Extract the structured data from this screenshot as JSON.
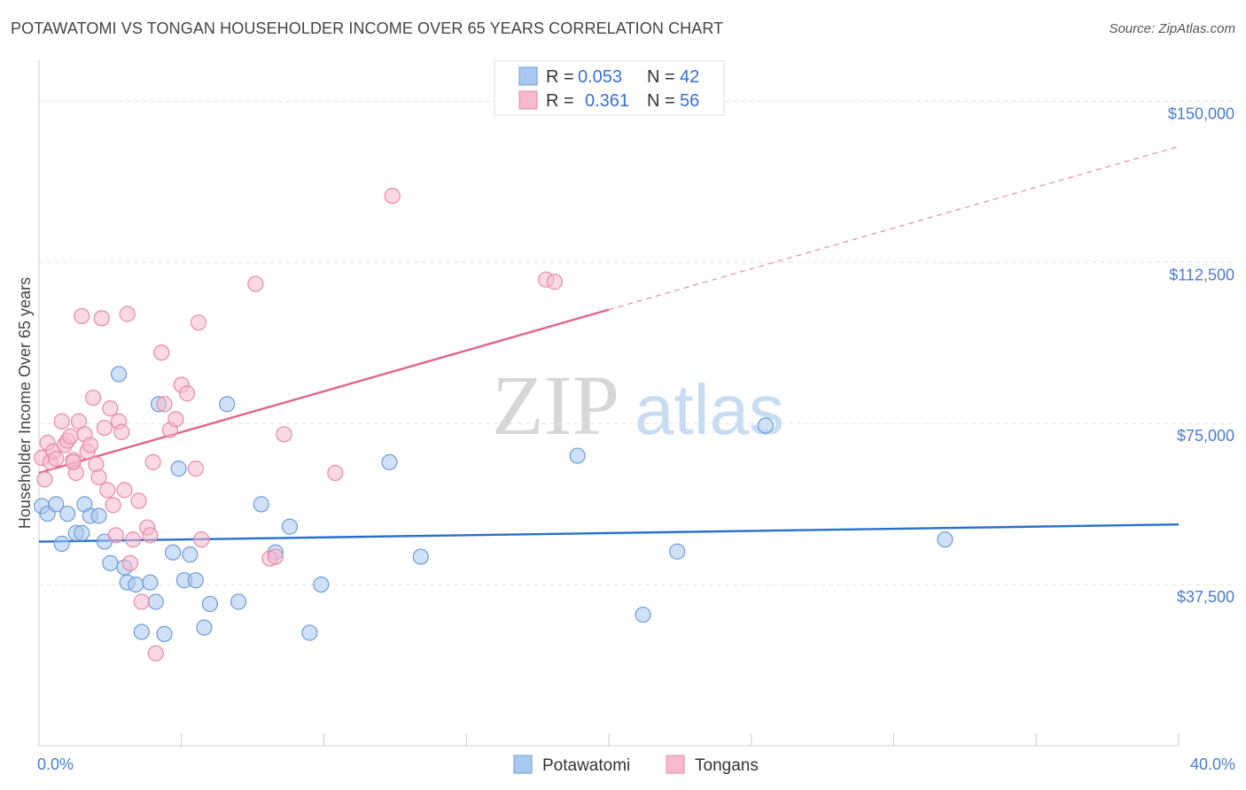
{
  "title": "POTAWATOMI VS TONGAN HOUSEHOLDER INCOME OVER 65 YEARS CORRELATION CHART",
  "source": "Source: ZipAtlas.com",
  "watermark": {
    "zip": "ZIP",
    "atlas": "atlas"
  },
  "colors": {
    "blue_fill": "#a9c8f0",
    "blue_stroke": "#6b9bd8",
    "blue_line": "#2a6fcc",
    "pink_fill": "#f6b9cd",
    "pink_stroke": "#e888a8",
    "pink_line": "#e0648c",
    "grid": "#e3e3e3",
    "tick_text": "#4a7bd0"
  },
  "legend": {
    "rows": [
      {
        "r_label": "R =",
        "r_value": "0.053",
        "n_label": "N =",
        "n_value": "42"
      },
      {
        "r_label": "R =",
        "r_value": "0.361",
        "n_label": "N =",
        "n_value": "56"
      }
    ]
  },
  "chart_data": {
    "type": "scatter",
    "title": "POTAWATOMI VS TONGAN HOUSEHOLDER INCOME OVER 65 YEARS CORRELATION CHART",
    "xlabel": "",
    "ylabel": "Householder Income Over 65 years",
    "xlim": [
      0,
      40
    ],
    "ylim": [
      0,
      157500
    ],
    "x_tick_labels": [
      {
        "value": 0,
        "label": "0.0%"
      },
      {
        "value": 40,
        "label": "40.0%"
      }
    ],
    "y_ticks": [
      {
        "value": 37500,
        "label": "$37,500"
      },
      {
        "value": 75000,
        "label": "$75,000"
      },
      {
        "value": 112500,
        "label": "$112,500"
      },
      {
        "value": 150000,
        "label": "$150,000"
      }
    ],
    "series": [
      {
        "name": "Potawatomi",
        "color": "blue",
        "R": 0.053,
        "N": 42,
        "trend": {
          "x0": 0,
          "y0": 47500,
          "x1": 40,
          "y1": 51500,
          "solid_to": 40
        },
        "points": [
          [
            0.1,
            55800
          ],
          [
            0.3,
            54000
          ],
          [
            0.6,
            56200
          ],
          [
            0.8,
            47000
          ],
          [
            1.0,
            54000
          ],
          [
            1.3,
            49500
          ],
          [
            1.5,
            49500
          ],
          [
            1.6,
            56200
          ],
          [
            1.8,
            53500
          ],
          [
            2.1,
            53500
          ],
          [
            2.3,
            47500
          ],
          [
            2.5,
            42500
          ],
          [
            2.8,
            86500
          ],
          [
            3.0,
            41500
          ],
          [
            3.1,
            38000
          ],
          [
            3.4,
            37500
          ],
          [
            3.6,
            26500
          ],
          [
            3.9,
            38000
          ],
          [
            4.1,
            33500
          ],
          [
            4.2,
            79500
          ],
          [
            4.4,
            26000
          ],
          [
            4.7,
            45000
          ],
          [
            4.9,
            64500
          ],
          [
            5.1,
            38500
          ],
          [
            5.3,
            44500
          ],
          [
            5.5,
            38500
          ],
          [
            5.8,
            27500
          ],
          [
            6.0,
            33000
          ],
          [
            6.6,
            79500
          ],
          [
            7.0,
            33500
          ],
          [
            7.8,
            56200
          ],
          [
            8.3,
            45000
          ],
          [
            8.8,
            51000
          ],
          [
            9.5,
            26300
          ],
          [
            9.9,
            37500
          ],
          [
            12.3,
            66000
          ],
          [
            13.4,
            44000
          ],
          [
            18.9,
            67500
          ],
          [
            21.2,
            30500
          ],
          [
            22.4,
            45200
          ],
          [
            25.5,
            74500
          ],
          [
            31.8,
            48000
          ]
        ]
      },
      {
        "name": "Tongans",
        "color": "pink",
        "R": 0.361,
        "N": 56,
        "trend": {
          "x0": 0,
          "y0": 63500,
          "x1": 40,
          "y1": 139500,
          "solid_to": 20
        },
        "points": [
          [
            0.1,
            67000
          ],
          [
            0.3,
            70500
          ],
          [
            0.4,
            66000
          ],
          [
            0.5,
            68500
          ],
          [
            0.6,
            66800
          ],
          [
            0.8,
            75500
          ],
          [
            0.9,
            70000
          ],
          [
            1.0,
            71000
          ],
          [
            1.1,
            72000
          ],
          [
            1.2,
            66500
          ],
          [
            1.3,
            63500
          ],
          [
            1.4,
            75500
          ],
          [
            1.5,
            100000
          ],
          [
            1.6,
            72500
          ],
          [
            1.7,
            68500
          ],
          [
            1.8,
            70000
          ],
          [
            1.9,
            81000
          ],
          [
            2.0,
            65500
          ],
          [
            2.1,
            62500
          ],
          [
            2.2,
            99500
          ],
          [
            2.3,
            74000
          ],
          [
            2.4,
            59500
          ],
          [
            2.5,
            78500
          ],
          [
            2.6,
            56000
          ],
          [
            2.7,
            49000
          ],
          [
            2.8,
            75500
          ],
          [
            2.9,
            73000
          ],
          [
            3.0,
            59500
          ],
          [
            3.1,
            100500
          ],
          [
            3.2,
            42500
          ],
          [
            3.3,
            48000
          ],
          [
            3.5,
            57000
          ],
          [
            3.6,
            33500
          ],
          [
            3.8,
            50800
          ],
          [
            3.9,
            49000
          ],
          [
            4.0,
            66000
          ],
          [
            4.1,
            21500
          ],
          [
            4.3,
            91500
          ],
          [
            4.4,
            79500
          ],
          [
            4.6,
            73500
          ],
          [
            4.8,
            76000
          ],
          [
            5.0,
            84000
          ],
          [
            5.2,
            82000
          ],
          [
            5.5,
            64500
          ],
          [
            5.6,
            98500
          ],
          [
            5.7,
            48000
          ],
          [
            7.6,
            107500
          ],
          [
            8.1,
            43600
          ],
          [
            8.3,
            44000
          ],
          [
            8.6,
            72500
          ],
          [
            10.4,
            63500
          ],
          [
            12.4,
            128000
          ],
          [
            17.8,
            108500
          ],
          [
            18.1,
            108000
          ],
          [
            0.2,
            62000
          ],
          [
            1.2,
            66000
          ]
        ]
      }
    ],
    "legend_position": "top-center"
  },
  "bottom_legend": {
    "items": [
      "Potawatomi",
      "Tongans"
    ]
  }
}
